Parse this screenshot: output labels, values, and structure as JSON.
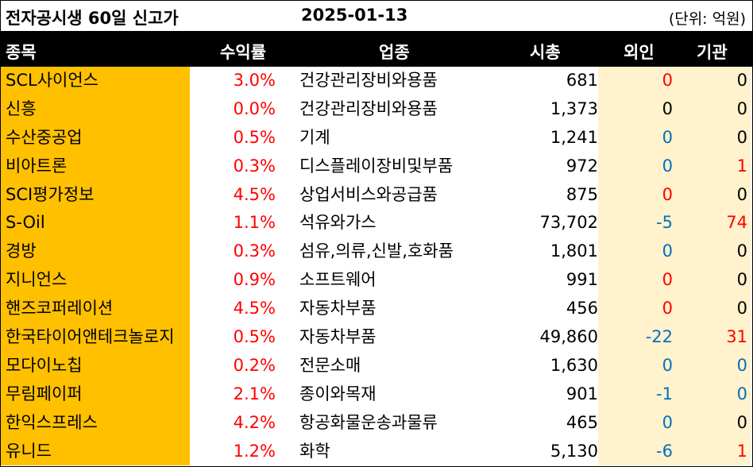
{
  "title": "전자공시생 60일 신고가",
  "date": "2025-01-13",
  "unit": "(단위: 억원)",
  "headers": {
    "name": "종목",
    "ret": "수익률",
    "ind": "업종",
    "cap": "시총",
    "foreign": "외인",
    "inst": "기관"
  },
  "colors": {
    "header_bg": "#000000",
    "name_bg": "#ffc000",
    "flow_bg": "#fff2cc",
    "up": "#ff0000",
    "down": "#0070c0",
    "flat": "#000000"
  },
  "rows": [
    {
      "name": "SCL사이언스",
      "ret": "3.0%",
      "ind": "건강관리장비와용품",
      "cap": "681",
      "foreign": "0",
      "foreign_color": "red",
      "inst": "0",
      "inst_color": "blk"
    },
    {
      "name": "신흥",
      "ret": "0.0%",
      "ind": "건강관리장비와용품",
      "cap": "1,373",
      "foreign": "0",
      "foreign_color": "blk",
      "inst": "0",
      "inst_color": "blk"
    },
    {
      "name": "수산중공업",
      "ret": "0.5%",
      "ind": "기계",
      "cap": "1,241",
      "foreign": "0",
      "foreign_color": "blue",
      "inst": "0",
      "inst_color": "blk"
    },
    {
      "name": "비아트론",
      "ret": "0.3%",
      "ind": "디스플레이장비및부품",
      "cap": "972",
      "foreign": "0",
      "foreign_color": "blue",
      "inst": "1",
      "inst_color": "red"
    },
    {
      "name": "SCI평가정보",
      "ret": "4.5%",
      "ind": "상업서비스와공급품",
      "cap": "875",
      "foreign": "0",
      "foreign_color": "red",
      "inst": "0",
      "inst_color": "blk"
    },
    {
      "name": "S-Oil",
      "ret": "1.1%",
      "ind": "석유와가스",
      "cap": "73,702",
      "foreign": "-5",
      "foreign_color": "blue",
      "inst": "74",
      "inst_color": "red"
    },
    {
      "name": "경방",
      "ret": "0.3%",
      "ind": "섬유,의류,신발,호화품",
      "cap": "1,801",
      "foreign": "0",
      "foreign_color": "blue",
      "inst": "0",
      "inst_color": "blk"
    },
    {
      "name": "지니언스",
      "ret": "0.9%",
      "ind": "소프트웨어",
      "cap": "991",
      "foreign": "0",
      "foreign_color": "red",
      "inst": "0",
      "inst_color": "blk"
    },
    {
      "name": "핸즈코퍼레이션",
      "ret": "4.5%",
      "ind": "자동차부품",
      "cap": "456",
      "foreign": "0",
      "foreign_color": "red",
      "inst": "0",
      "inst_color": "blk"
    },
    {
      "name": "한국타이어앤테크놀로지",
      "ret": "0.5%",
      "ind": "자동차부품",
      "cap": "49,860",
      "foreign": "-22",
      "foreign_color": "blue",
      "inst": "31",
      "inst_color": "red"
    },
    {
      "name": "모다이노칩",
      "ret": "0.2%",
      "ind": "전문소매",
      "cap": "1,630",
      "foreign": "0",
      "foreign_color": "blue",
      "inst": "0",
      "inst_color": "blue"
    },
    {
      "name": "무림페이퍼",
      "ret": "2.1%",
      "ind": "종이와목재",
      "cap": "901",
      "foreign": "-1",
      "foreign_color": "blue",
      "inst": "0",
      "inst_color": "blue"
    },
    {
      "name": "한익스프레스",
      "ret": "4.2%",
      "ind": "항공화물운송과물류",
      "cap": "465",
      "foreign": "0",
      "foreign_color": "blue",
      "inst": "0",
      "inst_color": "blk"
    },
    {
      "name": "유니드",
      "ret": "1.2%",
      "ind": "화학",
      "cap": "5,130",
      "foreign": "-6",
      "foreign_color": "blue",
      "inst": "1",
      "inst_color": "red"
    }
  ]
}
